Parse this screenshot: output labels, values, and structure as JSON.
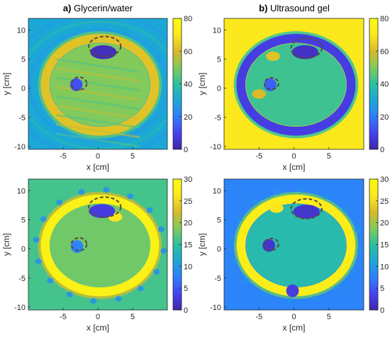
{
  "figure": {
    "panel_titles": [
      {
        "letter": "a)",
        "text": "Glycerin/water"
      },
      {
        "letter": "b)",
        "text": "Ultrasound gel"
      }
    ]
  },
  "colormap": [
    "#3e26a8",
    "#4743f0",
    "#2e7ffd",
    "#1ba8d6",
    "#2ec09f",
    "#82ca5c",
    "#d9ba2a",
    "#fbe91d",
    "#f9fb0e"
  ],
  "chart_data": [
    {
      "type": "heatmap",
      "id": "top-left",
      "title": "Glycerin/water",
      "letter": "a)",
      "xlabel": "x [cm]",
      "ylabel": "y [cm]",
      "xlim": [
        -10,
        10
      ],
      "ylim": [
        -10.5,
        12
      ],
      "xticks": [
        -5,
        0,
        5
      ],
      "yticks": [
        10,
        5,
        0,
        -5,
        -10
      ],
      "colorbar": {
        "min": 0,
        "max": 80,
        "ticks": [
          80,
          60,
          40,
          20,
          0
        ]
      },
      "background_value": 30,
      "inner_value": 50,
      "ring_value": 62,
      "inner_texture": "streaks",
      "background_texture": "ripple",
      "ring_beads": false,
      "low_regions": [
        {
          "x": 0.8,
          "y": 6.2,
          "value": 3
        },
        {
          "x": -3.1,
          "y": 0.6,
          "value": 12
        }
      ],
      "high_spots": [],
      "markers": [
        {
          "x": 1,
          "y": 7.2,
          "rx": 2.3,
          "ry": 1.7
        },
        {
          "x": -2.7,
          "y": 0.8,
          "rx": 1.1,
          "ry": 1.1
        }
      ]
    },
    {
      "type": "heatmap",
      "id": "top-right",
      "title": "Ultrasound gel",
      "letter": "b)",
      "xlabel": "x [cm]",
      "ylabel": "y [cm]",
      "xlim": [
        -10,
        10
      ],
      "ylim": [
        -10.5,
        12
      ],
      "xticks": [
        -5,
        0,
        5
      ],
      "yticks": [
        10,
        5,
        0,
        -5,
        -10
      ],
      "colorbar": {
        "min": 0,
        "max": 80,
        "ticks": [
          80,
          60,
          40,
          20,
          0
        ]
      },
      "background_value": 70,
      "inner_value": 42,
      "ring_value": 8,
      "inner_texture": "none",
      "background_texture": "none",
      "ring_beads": false,
      "low_regions": [
        {
          "x": 1.6,
          "y": 6.2,
          "value": 4
        },
        {
          "x": -3.4,
          "y": 0.6,
          "value": 15
        }
      ],
      "high_spots": [
        {
          "x": -3,
          "y": 5.5,
          "value": 62
        },
        {
          "x": -5,
          "y": -1,
          "value": 60
        }
      ],
      "markers": [
        {
          "x": 1.8,
          "y": 6.9,
          "rx": 2.2,
          "ry": 1.7
        },
        {
          "x": -3.2,
          "y": 0.8,
          "rx": 1.0,
          "ry": 1.0
        }
      ]
    },
    {
      "type": "heatmap",
      "id": "bottom-left",
      "title": "",
      "letter": "",
      "xlabel": "x [cm]",
      "ylabel": "y [cm]",
      "xlim": [
        -10,
        10
      ],
      "ylim": [
        -10.5,
        12
      ],
      "xticks": [
        -5,
        0,
        5
      ],
      "yticks": [
        10,
        5,
        0,
        -5,
        -10
      ],
      "colorbar": {
        "min": 0,
        "max": 30,
        "ticks": [
          30,
          25,
          20,
          15,
          10,
          5,
          0
        ]
      },
      "background_value": 16,
      "inner_value": 18,
      "ring_value": 28,
      "inner_texture": "none",
      "background_texture": "none",
      "ring_beads": true,
      "low_regions": [
        {
          "x": 0.6,
          "y": 6.5,
          "value": 3
        },
        {
          "x": -3,
          "y": 0.4,
          "value": 8
        }
      ],
      "high_spots": [
        {
          "x": 2.5,
          "y": 5.5,
          "value": 26
        }
      ],
      "markers": [
        {
          "x": 1,
          "y": 7.2,
          "rx": 2.3,
          "ry": 1.7
        },
        {
          "x": -2.7,
          "y": 0.8,
          "rx": 1.1,
          "ry": 1.1
        }
      ]
    },
    {
      "type": "heatmap",
      "id": "bottom-right",
      "title": "",
      "letter": "",
      "xlabel": "x [cm]",
      "ylabel": "y [cm]",
      "xlim": [
        -10,
        10
      ],
      "ylim": [
        -10.5,
        12
      ],
      "xticks": [
        -5,
        0,
        5
      ],
      "yticks": [
        10,
        5,
        0,
        -5,
        -10
      ],
      "colorbar": {
        "min": 0,
        "max": 30,
        "ticks": [
          30,
          25,
          20,
          15,
          10,
          5,
          0
        ]
      },
      "background_value": 8,
      "inner_value": 14,
      "ring_value": 27,
      "inner_texture": "none",
      "background_texture": "none",
      "ring_beads": true,
      "low_regions": [
        {
          "x": 1.8,
          "y": 6.4,
          "value": 2
        },
        {
          "x": -3.6,
          "y": 0.6,
          "value": 2
        },
        {
          "x": -0.2,
          "y": -7.2,
          "value": 3
        }
      ],
      "high_spots": [
        {
          "x": -2.5,
          "y": 7,
          "value": 26
        }
      ],
      "markers": [
        {
          "x": 1.8,
          "y": 6.9,
          "rx": 2.2,
          "ry": 1.7
        },
        {
          "x": -3.2,
          "y": 0.8,
          "rx": 1.0,
          "ry": 1.0
        }
      ]
    }
  ]
}
